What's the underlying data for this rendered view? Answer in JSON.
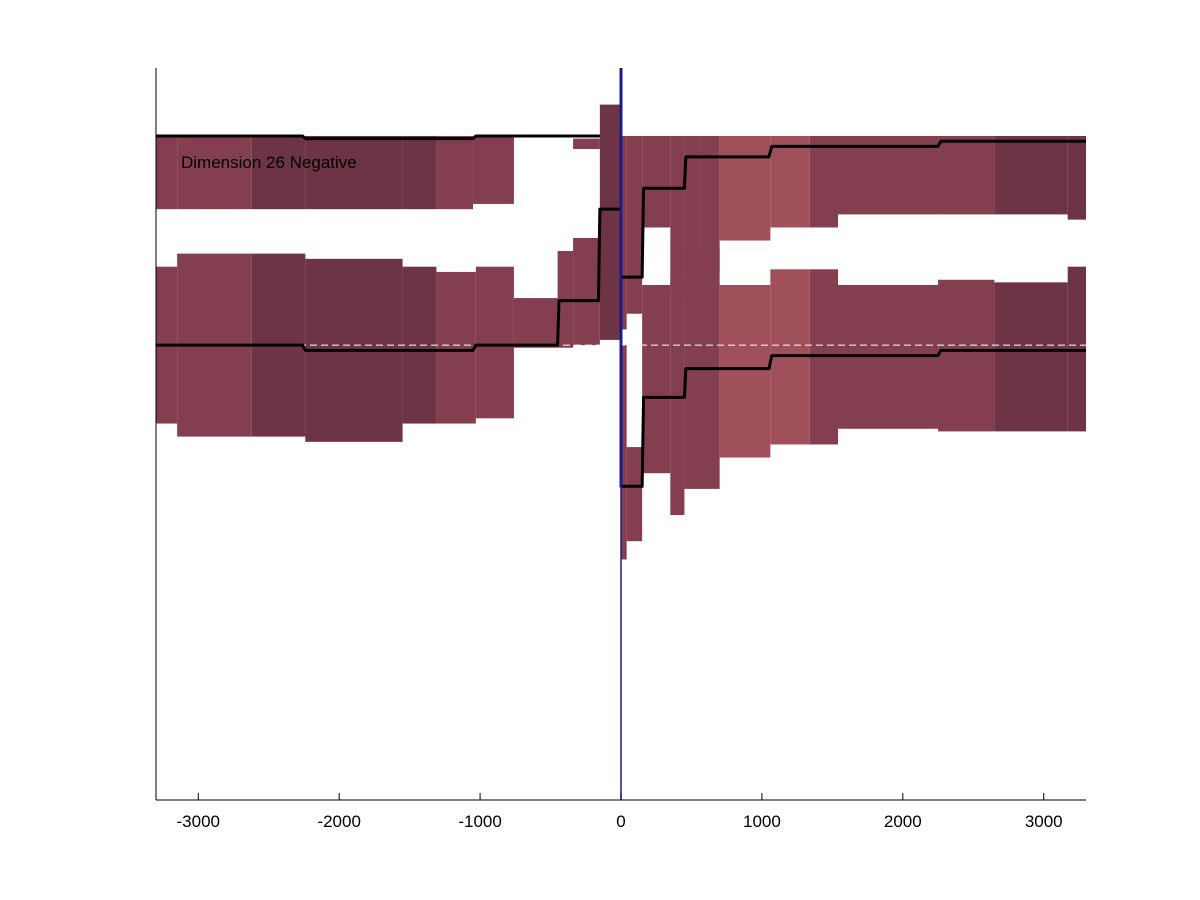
{
  "chart_data": {
    "type": "area",
    "annotation": "Dimension 26 Negative",
    "xlabel": "",
    "ylabel": "",
    "xlim": [
      -3300,
      3300
    ],
    "ylim": [
      -1.74,
      1.06
    ],
    "grid": false,
    "x_ticks": [
      -3000,
      -2000,
      -1000,
      0,
      1000,
      2000,
      3000
    ],
    "x_tick_labels": [
      "-3000",
      "-2000",
      "-1000",
      "0",
      "1000",
      "2000",
      "3000"
    ],
    "colors": {
      "band_default": "#833f4f",
      "band_dark": "#6c3445",
      "band_light": "#a0505b",
      "mean_line": "#000000",
      "zero_line": "#1c1c8c",
      "baseline": "#ffffff"
    },
    "panels": [
      {
        "name": "upper",
        "offset": 0.8,
        "bins": [
          {
            "x0": -3300,
            "x1": -3150,
            "hi": 0.0,
            "lo": -0.28,
            "tone": "default"
          },
          {
            "x0": -3150,
            "x1": -2620,
            "hi": 0.0,
            "lo": -0.28,
            "tone": "default"
          },
          {
            "x0": -2620,
            "x1": -2240,
            "hi": 0.0,
            "lo": -0.28,
            "tone": "dark"
          },
          {
            "x0": -2240,
            "x1": -1550,
            "hi": 0.0,
            "lo": -0.28,
            "tone": "dark"
          },
          {
            "x0": -1550,
            "x1": -1310,
            "hi": 0.0,
            "lo": -0.28,
            "tone": "dark"
          },
          {
            "x0": -1310,
            "x1": -1050,
            "hi": 0.0,
            "lo": -0.28,
            "tone": "default"
          },
          {
            "x0": -1050,
            "x1": -760,
            "hi": 0.0,
            "lo": -0.26,
            "tone": "default"
          },
          {
            "x0": -340,
            "x1": -150,
            "hi": -0.01,
            "lo": -0.05,
            "tone": "default"
          },
          {
            "x0": 0,
            "x1": 40,
            "hi": 0.0,
            "lo": -0.74,
            "tone": "default"
          },
          {
            "x0": 40,
            "x1": 150,
            "hi": 0.0,
            "lo": -0.68,
            "tone": "default"
          },
          {
            "x0": 150,
            "x1": 350,
            "hi": 0.0,
            "lo": -0.35,
            "tone": "default"
          },
          {
            "x0": 350,
            "x1": 450,
            "hi": 0.0,
            "lo": -0.62,
            "tone": "default"
          },
          {
            "x0": 450,
            "x1": 560,
            "hi": 0.0,
            "lo": -0.52,
            "tone": "default"
          },
          {
            "x0": 560,
            "x1": 700,
            "hi": 0.0,
            "lo": -0.52,
            "tone": "default"
          },
          {
            "x0": 700,
            "x1": 1060,
            "hi": 0.0,
            "lo": -0.4,
            "tone": "light"
          },
          {
            "x0": 1060,
            "x1": 1340,
            "hi": 0.0,
            "lo": -0.35,
            "tone": "light"
          },
          {
            "x0": 1340,
            "x1": 1540,
            "hi": 0.0,
            "lo": -0.35,
            "tone": "default"
          },
          {
            "x0": 1540,
            "x1": 2250,
            "hi": 0.0,
            "lo": -0.3,
            "tone": "default"
          },
          {
            "x0": 2250,
            "x1": 2650,
            "hi": 0.0,
            "lo": -0.3,
            "tone": "default"
          },
          {
            "x0": 2650,
            "x1": 3170,
            "hi": 0.0,
            "lo": -0.3,
            "tone": "dark"
          },
          {
            "x0": 3170,
            "x1": 3300,
            "hi": 0.0,
            "lo": -0.32,
            "tone": "dark"
          }
        ],
        "mean": [
          [
            -3300,
            0.0
          ],
          [
            -2260,
            0.0
          ],
          [
            -2240,
            -0.01
          ],
          [
            -1050,
            -0.01
          ],
          [
            -1030,
            0.0
          ],
          [
            0,
            0.0
          ],
          [
            0,
            -0.54
          ],
          [
            150,
            -0.54
          ],
          [
            160,
            -0.2
          ],
          [
            450,
            -0.2
          ],
          [
            460,
            -0.08
          ],
          [
            1050,
            -0.08
          ],
          [
            1070,
            -0.04
          ],
          [
            2250,
            -0.04
          ],
          [
            2270,
            -0.02
          ],
          [
            3300,
            -0.02
          ]
        ]
      },
      {
        "name": "lower",
        "offset": 0.0,
        "bins": [
          {
            "x0": -3300,
            "x1": -3150,
            "hi": 0.3,
            "lo": -0.3,
            "tone": "default"
          },
          {
            "x0": -3150,
            "x1": -2620,
            "hi": 0.35,
            "lo": -0.35,
            "tone": "default"
          },
          {
            "x0": -2620,
            "x1": -2240,
            "hi": 0.35,
            "lo": -0.35,
            "tone": "dark"
          },
          {
            "x0": -2240,
            "x1": -1550,
            "hi": 0.33,
            "lo": -0.37,
            "tone": "dark"
          },
          {
            "x0": -1550,
            "x1": -1310,
            "hi": 0.3,
            "lo": -0.3,
            "tone": "dark"
          },
          {
            "x0": -1310,
            "x1": -1030,
            "hi": 0.28,
            "lo": -0.3,
            "tone": "default"
          },
          {
            "x0": -1030,
            "x1": -760,
            "hi": 0.3,
            "lo": -0.28,
            "tone": "default"
          },
          {
            "x0": -760,
            "x1": -450,
            "hi": 0.18,
            "lo": -0.01,
            "tone": "default"
          },
          {
            "x0": -450,
            "x1": -340,
            "hi": 0.36,
            "lo": -0.01,
            "tone": "default"
          },
          {
            "x0": -340,
            "x1": -150,
            "hi": 0.41,
            "lo": 0.0,
            "tone": "default"
          },
          {
            "x0": -150,
            "x1": 0,
            "hi": 0.92,
            "lo": 0.02,
            "tone": "dark"
          },
          {
            "x0": 0,
            "x1": 40,
            "hi": 0.0,
            "lo": -0.82,
            "tone": "default"
          },
          {
            "x0": 40,
            "x1": 150,
            "hi": -0.39,
            "lo": -0.75,
            "tone": "default"
          },
          {
            "x0": 150,
            "x1": 350,
            "hi": 0.23,
            "lo": -0.49,
            "tone": "default"
          },
          {
            "x0": 350,
            "x1": 450,
            "hi": 0.25,
            "lo": -0.65,
            "tone": "default"
          },
          {
            "x0": 450,
            "x1": 700,
            "hi": 0.37,
            "lo": -0.55,
            "tone": "default"
          },
          {
            "x0": 700,
            "x1": 1060,
            "hi": 0.23,
            "lo": -0.43,
            "tone": "light"
          },
          {
            "x0": 1060,
            "x1": 1340,
            "hi": 0.29,
            "lo": -0.38,
            "tone": "light"
          },
          {
            "x0": 1340,
            "x1": 1540,
            "hi": 0.29,
            "lo": -0.38,
            "tone": "default"
          },
          {
            "x0": 1540,
            "x1": 2250,
            "hi": 0.23,
            "lo": -0.32,
            "tone": "default"
          },
          {
            "x0": 2250,
            "x1": 2650,
            "hi": 0.25,
            "lo": -0.33,
            "tone": "default"
          },
          {
            "x0": 2650,
            "x1": 3170,
            "hi": 0.24,
            "lo": -0.33,
            "tone": "dark"
          },
          {
            "x0": 3170,
            "x1": 3300,
            "hi": 0.3,
            "lo": -0.33,
            "tone": "dark"
          }
        ],
        "mean": [
          [
            -3300,
            0.0
          ],
          [
            -2260,
            0.0
          ],
          [
            -2240,
            -0.02
          ],
          [
            -1050,
            -0.02
          ],
          [
            -1030,
            0.0
          ],
          [
            -450,
            0.0
          ],
          [
            -440,
            0.17
          ],
          [
            -160,
            0.17
          ],
          [
            -150,
            0.52
          ],
          [
            -10,
            0.52
          ],
          [
            0,
            0.52
          ],
          [
            0,
            -0.54
          ],
          [
            150,
            -0.54
          ],
          [
            160,
            -0.2
          ],
          [
            450,
            -0.2
          ],
          [
            460,
            -0.09
          ],
          [
            1050,
            -0.09
          ],
          [
            1070,
            -0.04
          ],
          [
            2250,
            -0.04
          ],
          [
            2270,
            -0.02
          ],
          [
            3300,
            -0.02
          ]
        ]
      }
    ]
  }
}
